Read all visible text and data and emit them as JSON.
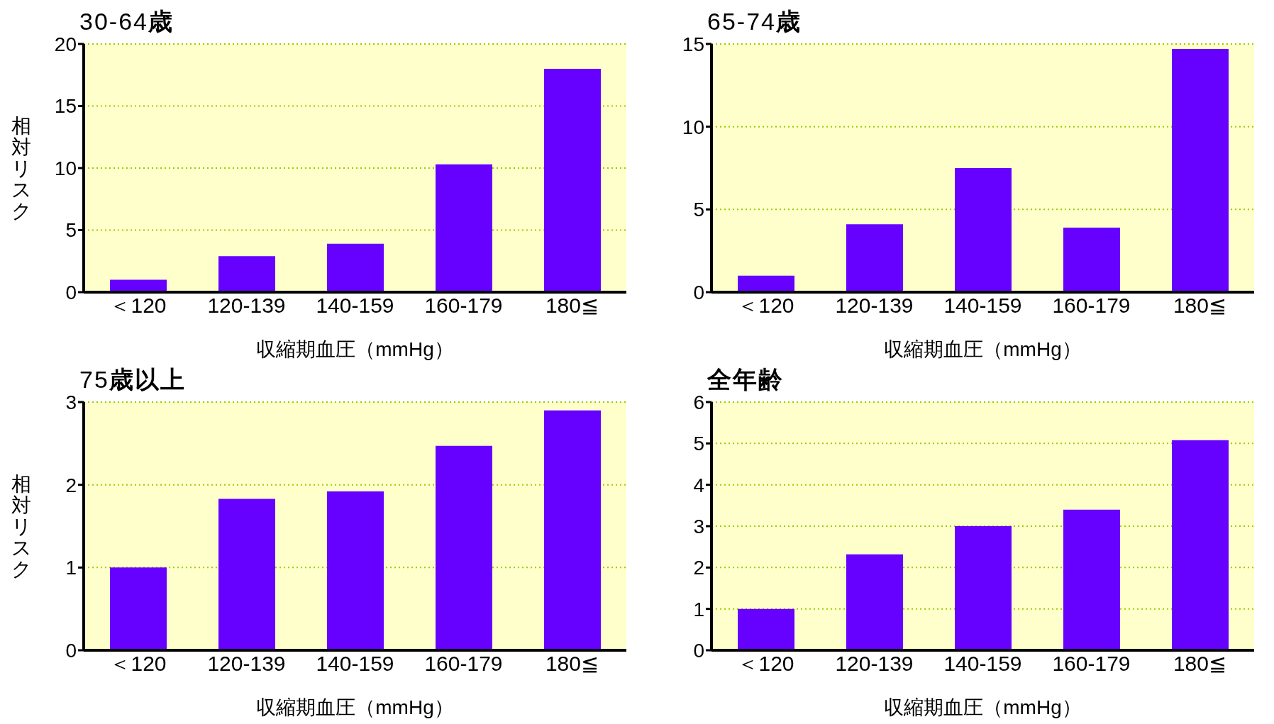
{
  "chart_data": [
    {
      "type": "bar",
      "title": "30-64歳",
      "xlabel": "収縮期血圧（mmHg）",
      "ylabel": "相対リスク",
      "categories": [
        "＜120",
        "120-139",
        "140-159",
        "160-179",
        "180≦"
      ],
      "values": [
        1.0,
        2.9,
        3.9,
        10.3,
        18.0
      ],
      "color": "#6600ff",
      "ylim": [
        0,
        20
      ],
      "yticks": [
        0,
        5,
        10,
        15,
        20
      ],
      "grid": "y"
    },
    {
      "type": "bar",
      "title": "65-74歳",
      "xlabel": "収縮期血圧（mmHg）",
      "categories": [
        "＜120",
        "120-139",
        "140-159",
        "160-179",
        "180≦"
      ],
      "values": [
        1.0,
        4.1,
        7.5,
        3.9,
        14.7
      ],
      "color": "#6600ff",
      "ylim": [
        0,
        15
      ],
      "yticks": [
        0,
        5,
        10,
        15
      ],
      "grid": "y"
    },
    {
      "type": "bar",
      "title": "75歳以上",
      "xlabel": "収縮期血圧（mmHg）",
      "ylabel": "相対リスク",
      "categories": [
        "＜120",
        "120-139",
        "140-159",
        "160-179",
        "180≦"
      ],
      "values": [
        1.0,
        1.83,
        1.92,
        2.47,
        2.9
      ],
      "color": "#6600ff",
      "ylim": [
        0,
        3
      ],
      "yticks": [
        0,
        1,
        2,
        3
      ],
      "grid": "y"
    },
    {
      "type": "bar",
      "title": "全年齢",
      "xlabel": "収縮期血圧（mmHg）",
      "categories": [
        "＜120",
        "120-139",
        "140-159",
        "160-179",
        "180≦"
      ],
      "values": [
        1.0,
        2.32,
        3.0,
        3.4,
        5.08
      ],
      "color": "#6600ff",
      "ylim": [
        0,
        6
      ],
      "yticks": [
        0,
        1,
        2,
        3,
        4,
        5,
        6
      ],
      "grid": "y"
    }
  ]
}
